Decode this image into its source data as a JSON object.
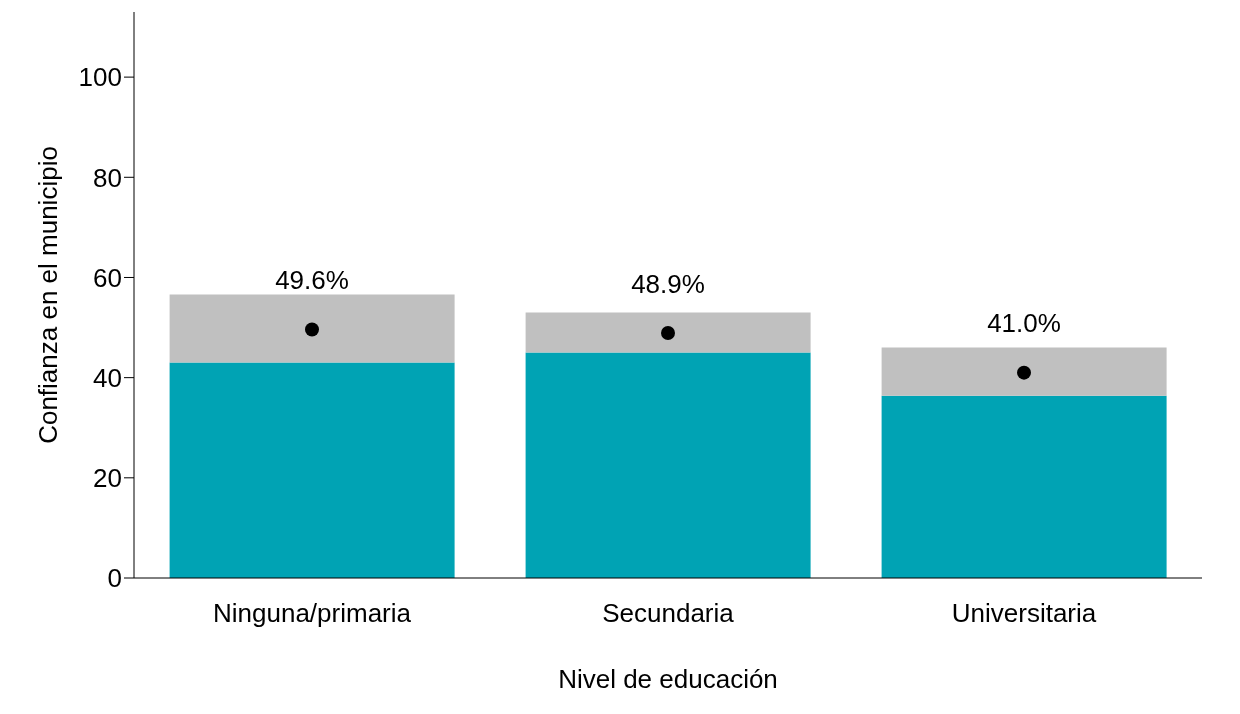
{
  "chart_data": {
    "type": "bar",
    "stacked": true,
    "xlabel": "Nivel de educación",
    "ylabel": "Confianza en el municipio",
    "categories": [
      "Ninguna/primaria",
      "Secundaria",
      "Universitaria"
    ],
    "series": [
      {
        "color": "#00a3b4",
        "values": [
          43.0,
          45.0,
          36.4
        ]
      },
      {
        "color": "#c0c0c0",
        "values": [
          13.6,
          8.0,
          9.6
        ]
      },
      {
        "type": "scatter",
        "color": "#000000",
        "values": [
          49.6,
          48.9,
          41.0
        ],
        "value_labels": [
          "49.6%",
          "48.9%",
          "41.0%"
        ]
      }
    ],
    "ylim": [
      0,
      113
    ],
    "yticks": [
      0,
      20,
      40,
      60,
      80,
      100
    ],
    "marker": "circle"
  }
}
